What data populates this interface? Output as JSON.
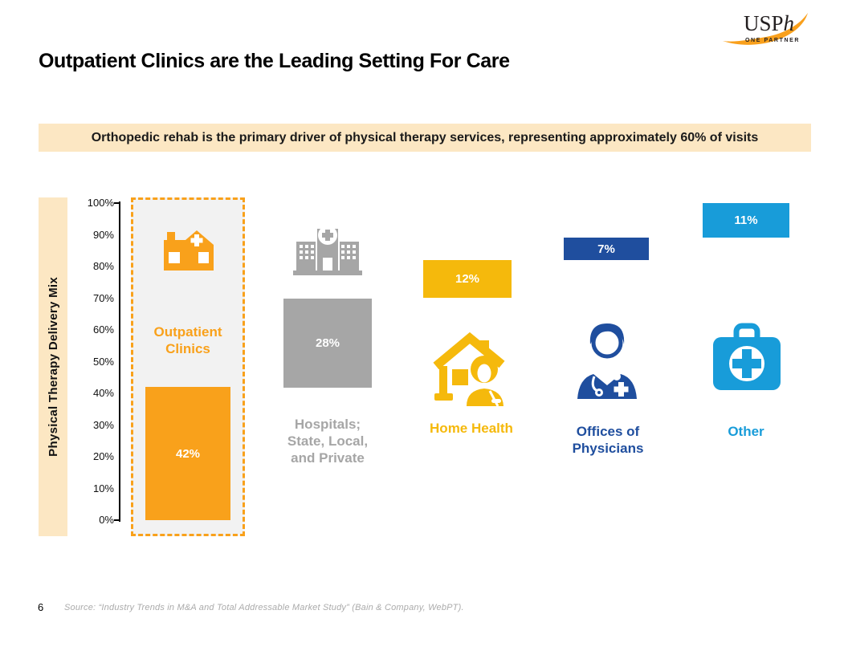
{
  "logo": {
    "brand_prefix": "USP",
    "brand_suffix": "h",
    "tagline": "ONE PARTNER"
  },
  "title": "Outpatient Clinics are the Leading Setting For Care",
  "callout": "Orthopedic rehab is the primary driver of physical therapy services, representing approximately 60% of visits",
  "colors": {
    "orange": "#F9A11B",
    "gray": "#A6A6A6",
    "gold": "#F5B90C",
    "dark_blue": "#1F4E9E",
    "light_blue": "#189CD9",
    "cream": "#FCE7C3",
    "highlight_box_fill": "#F2F2F2"
  },
  "chart_data": {
    "type": "bar",
    "subtype": "stacked-column-breakdown",
    "title": "",
    "xlabel": "",
    "ylabel": "Physical Therapy Delivery Mix",
    "ylim": [
      0,
      100
    ],
    "grid": false,
    "legend": "none",
    "yticks": [
      "100%",
      "90%",
      "80%",
      "70%",
      "60%",
      "50%",
      "40%",
      "30%",
      "20%",
      "10%",
      "0%"
    ],
    "categories": [
      "Outpatient Clinics",
      "Hospitals; State, Local, and Private",
      "Home Health",
      "Offices of Physicians",
      "Other"
    ],
    "values": [
      42,
      28,
      12,
      7,
      11
    ],
    "segments": [
      {
        "category": "Outpatient Clinics",
        "value": 42,
        "value_label": "42%",
        "color": "#F9A11B",
        "icon": "clinic-building-icon",
        "label_lines": [
          "Outpatient",
          "Clinics"
        ],
        "highlighted": true
      },
      {
        "category": "Hospitals; State, Local, and Private",
        "value": 28,
        "value_label": "28%",
        "color": "#A6A6A6",
        "icon": "hospital-icon",
        "label_lines": [
          "Hospitals;",
          "State, Local,",
          "and Private"
        ],
        "highlighted": false
      },
      {
        "category": "Home Health",
        "value": 12,
        "value_label": "12%",
        "color": "#F5B90C",
        "icon": "home-health-icon",
        "label_lines": [
          "Home Health"
        ],
        "highlighted": false
      },
      {
        "category": "Offices of Physicians",
        "value": 7,
        "value_label": "7%",
        "color": "#1F4E9E",
        "icon": "doctor-icon",
        "label_lines": [
          "Offices of",
          "Physicians"
        ],
        "highlighted": false
      },
      {
        "category": "Other",
        "value": 11,
        "value_label": "11%",
        "color": "#189CD9",
        "icon": "first-aid-kit-icon",
        "label_lines": [
          "Other"
        ],
        "highlighted": false
      }
    ]
  },
  "footer": {
    "page_number": "6",
    "source": "Source: “Industry Trends in M&A and Total Addressable Market Study” (Bain & Company, WebPT)."
  }
}
